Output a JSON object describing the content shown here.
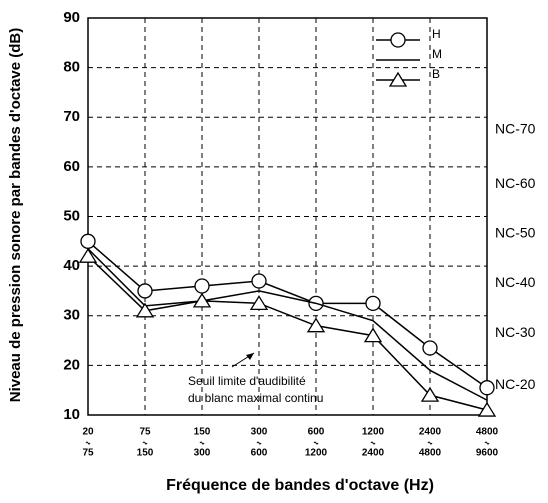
{
  "chart_data": {
    "type": "line",
    "y_label": "Niveau de pression sonore par bandes d'octave (dB)",
    "x_label": "Fréquence de bandes d'octave (Hz)",
    "categories": [
      [
        "20",
        "75"
      ],
      [
        "75",
        "150"
      ],
      [
        "150",
        "300"
      ],
      [
        "300",
        "600"
      ],
      [
        "600",
        "1200"
      ],
      [
        "1200",
        "2400"
      ],
      [
        "2400",
        "4800"
      ],
      [
        "4800",
        "9600"
      ]
    ],
    "series": [
      {
        "name": "H",
        "color": "#000000",
        "marker": "circle",
        "values": [
          45,
          35,
          36,
          37,
          32.5,
          32.5,
          23.5,
          15.5
        ]
      },
      {
        "name": "M",
        "color": "#000000",
        "marker": "none",
        "values": [
          43.5,
          32,
          33,
          35,
          32.5,
          29,
          19,
          13
        ]
      },
      {
        "name": "B",
        "color": "#000000",
        "marker": "triangle",
        "values": [
          42,
          31,
          33,
          32.5,
          28,
          26,
          14,
          11
        ]
      }
    ],
    "ylim": [
      10,
      90
    ],
    "yticks": [
      10,
      20,
      30,
      40,
      50,
      60,
      70,
      80,
      90
    ],
    "grid": true,
    "legend": "upper right",
    "nc_labels": [
      {
        "label": "NC-70",
        "value": 67.5
      },
      {
        "label": "NC-60",
        "value": 56.5
      },
      {
        "label": "NC-50",
        "value": 46.5
      },
      {
        "label": "NC-40",
        "value": 36.5
      },
      {
        "label": "NC-30",
        "value": 26.5
      },
      {
        "label": "NC-20",
        "value": 16
      }
    ],
    "annotation": [
      "Seuil limite d'audibilité",
      "du blanc maximal continu"
    ]
  }
}
